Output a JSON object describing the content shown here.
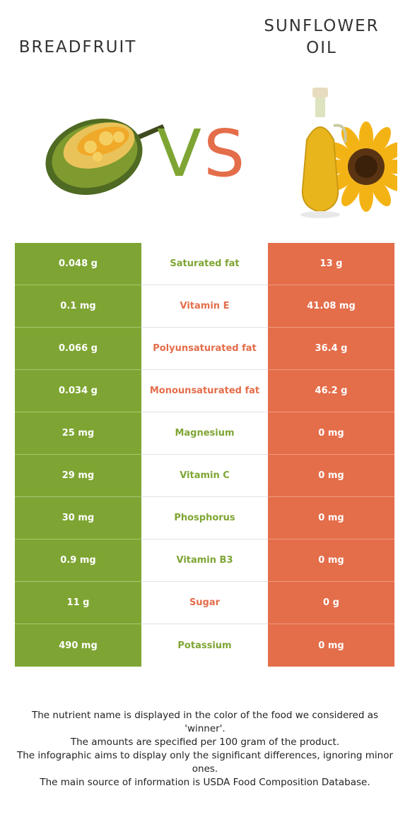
{
  "header": {
    "left_title": "BREADFRUIT",
    "right_title": "SUNFLOWER OIL",
    "vs_v": "V",
    "vs_s": "S"
  },
  "colors": {
    "left_food": "#7ea533",
    "right_food": "#e46d4a"
  },
  "rows": [
    {
      "left": "0.048 g",
      "nutrient": "Saturated fat",
      "right": "13 g",
      "winner": "left"
    },
    {
      "left": "0.1 mg",
      "nutrient": "Vitamin E",
      "right": "41.08 mg",
      "winner": "right"
    },
    {
      "left": "0.066 g",
      "nutrient": "Polyunsaturated fat",
      "right": "36.4 g",
      "winner": "right"
    },
    {
      "left": "0.034 g",
      "nutrient": "Monounsaturated fat",
      "right": "46.2 g",
      "winner": "right"
    },
    {
      "left": "25 mg",
      "nutrient": "Magnesium",
      "right": "0 mg",
      "winner": "left"
    },
    {
      "left": "29 mg",
      "nutrient": "Vitamin C",
      "right": "0 mg",
      "winner": "left"
    },
    {
      "left": "30 mg",
      "nutrient": "Phosphorus",
      "right": "0 mg",
      "winner": "left"
    },
    {
      "left": "0.9 mg",
      "nutrient": "Vitamin B3",
      "right": "0 mg",
      "winner": "left"
    },
    {
      "left": "11 g",
      "nutrient": "Sugar",
      "right": "0 g",
      "winner": "right"
    },
    {
      "left": "490 mg",
      "nutrient": "Potassium",
      "right": "0 mg",
      "winner": "left"
    }
  ],
  "footer": [
    "The nutrient name is displayed in the color of the food we considered as 'winner'.",
    "The amounts are specified per 100 gram of the product.",
    "The infographic aims to display only the significant differences, ignoring minor ones.",
    "The main source of information is USDA Food Composition Database."
  ]
}
